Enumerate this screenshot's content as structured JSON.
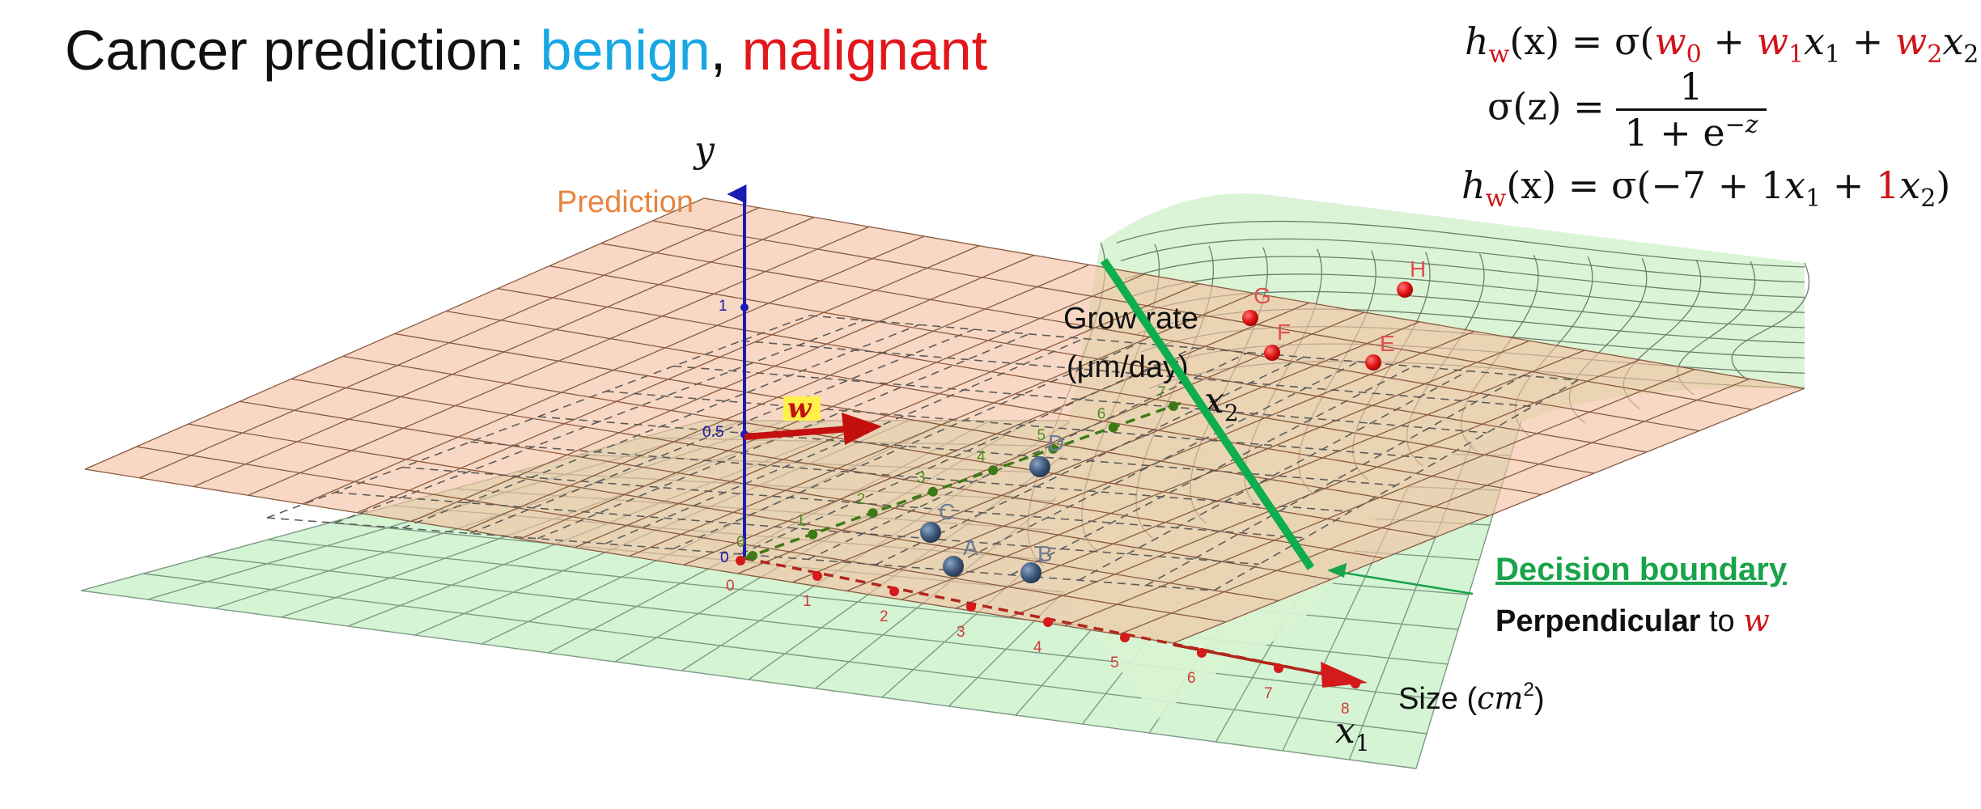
{
  "title": {
    "prefix": "Cancer prediction: ",
    "benign": "benign",
    "comma": ",",
    "malignant": "malignant"
  },
  "formulas": {
    "h1_lhs": "h",
    "h1_w": "w",
    "h1_rest": "(x) = σ(",
    "h1_w0": "w",
    "h1_w0_sub": "0",
    "h1_plus1": " + ",
    "h1_w1": "w",
    "h1_w1_sub": "1",
    "h1_x1": "x",
    "h1_x1_sub": "1",
    "h1_plus2": " + ",
    "h1_w2": "w",
    "h1_w2_sub": "2",
    "h1_x2": "x",
    "h1_x2_sub": "2",
    "h1_close": ")",
    "sigma_lhs": "σ(z) = ",
    "sigma_num": "1",
    "sigma_den": "1 + e",
    "sigma_den_exp": "−z",
    "h2_lhs": "h",
    "h2_w": "w",
    "h2_rest": "(x) = σ(−7 + 1",
    "h2_x1": "x",
    "h2_x1_sub": "1",
    "h2_plus": " + ",
    "h2_red1": "1",
    "h2_x2": "x",
    "h2_x2_sub": "2",
    "h2_close": ")"
  },
  "axes": {
    "y_label": "y",
    "y_name": "Prediction",
    "y_tick_1": "1",
    "y_tick_05": "0.5",
    "y_tick_0": "0",
    "x1_label": "x",
    "x1_sub": "1",
    "x1_name_prefix": "Size (",
    "x1_name_unit": "cm",
    "x1_name_exp": "2",
    "x1_name_suffix": ")",
    "x1_ticks": [
      "0",
      "1",
      "2",
      "3",
      "4",
      "5",
      "6",
      "7",
      "8"
    ],
    "x2_label": "x",
    "x2_sub": "2",
    "x2_name_line1": "Grow rate",
    "x2_name_line2": "(μm/day)",
    "x2_ticks": [
      "0",
      "1",
      "2",
      "3",
      "4",
      "5",
      "6",
      "7"
    ]
  },
  "vector_label": "w",
  "points_benign": [
    "A",
    "B",
    "C",
    "D"
  ],
  "points_malignant": [
    "E",
    "F",
    "G",
    "H"
  ],
  "decision_boundary": {
    "title": "Decision boundary",
    "prefix": "Perpendicular",
    "middle": " to ",
    "w": "w"
  },
  "colors": {
    "benign": "#18a7e3",
    "malignant": "#e3171b",
    "prediction_plane": "#f3c09f",
    "lower_plane": "#cdf2cd",
    "sigmoid_surface": "#d8f3d2",
    "boundary": "#0eae4e",
    "y_axis": "#1b1bb3",
    "x1_axis": "#b0271c",
    "x2_axis": "#3d7a17",
    "weight_vector": "#c40f0f",
    "benign_point": "#3f5878",
    "malignant_point": "#dd1212"
  }
}
